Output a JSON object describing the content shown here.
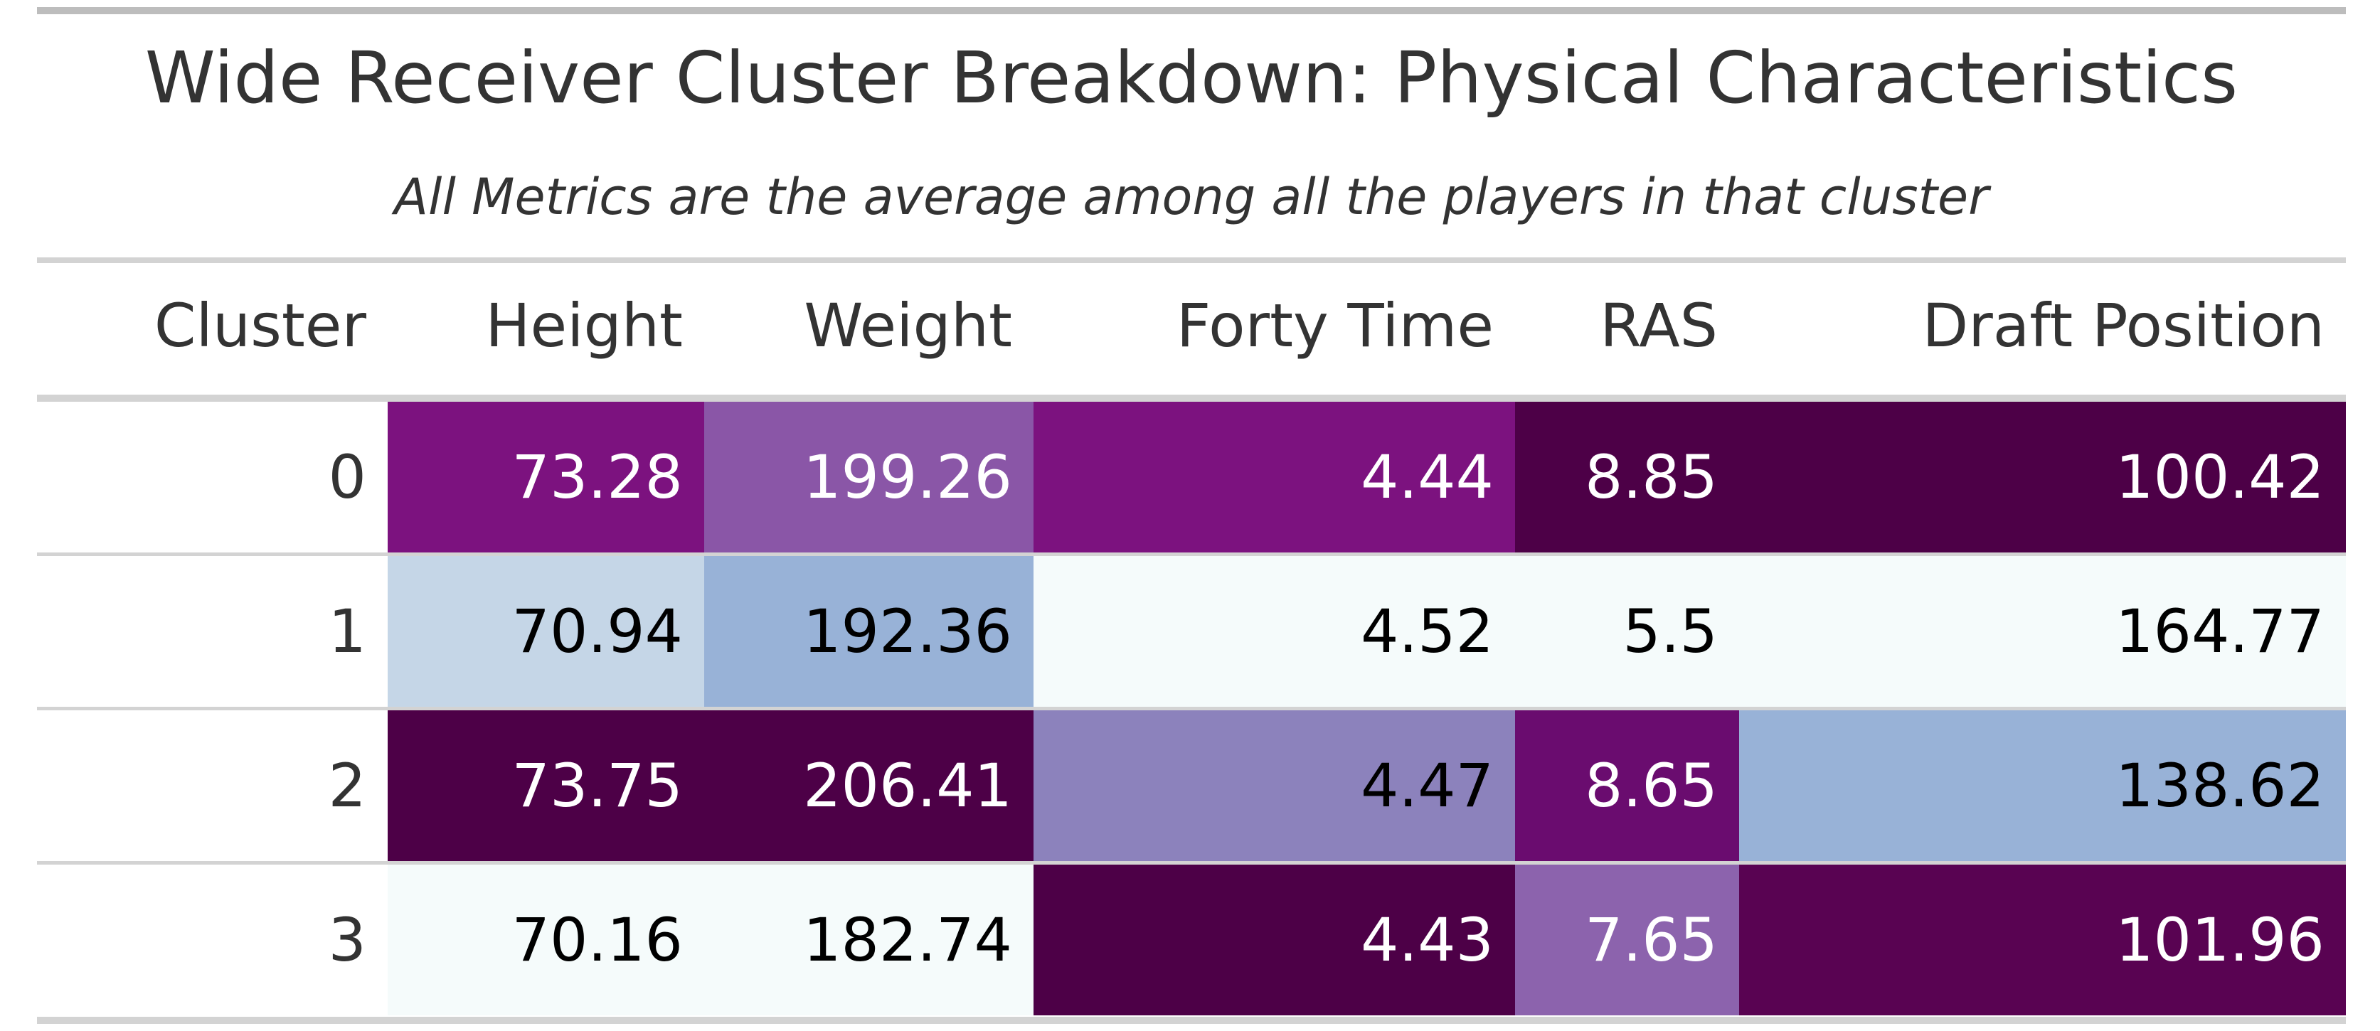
{
  "chart_data": {
    "type": "table",
    "title": "Wide Receiver Cluster Breakdown: Physical Characteristics",
    "subtitle": "All Metrics are the average among all the players in that cluster",
    "columns": [
      "Cluster",
      "Height",
      "Weight",
      "Forty Time",
      "RAS",
      "Draft Position"
    ],
    "rows": [
      {
        "cells": [
          "0",
          "73.28",
          "199.26",
          "4.44",
          "8.85",
          "100.42"
        ],
        "colors": [
          null,
          "#7c127f",
          "#8a56a7",
          "#7c127f",
          "#4d0047",
          "#4d0047"
        ]
      },
      {
        "cells": [
          "1",
          "70.94",
          "192.36",
          "4.52",
          "5.5",
          "164.77"
        ],
        "colors": [
          null,
          "#c5d6e7",
          "#98b2d7",
          "#f5fbfb",
          "#f5fbfb",
          "#f5fbfb"
        ]
      },
      {
        "cells": [
          "2",
          "73.75",
          "206.41",
          "4.47",
          "8.65",
          "138.62"
        ],
        "colors": [
          null,
          "#4d0047",
          "#4d0047",
          "#8c82bc",
          "#6a0c6f",
          "#98b2d7"
        ]
      },
      {
        "cells": [
          "3",
          "70.16",
          "182.74",
          "4.43",
          "7.65",
          "101.96"
        ],
        "colors": [
          null,
          "#f5fbfb",
          "#f5fbfb",
          "#4d0047",
          "#8c63ad",
          "#590352"
        ]
      }
    ]
  }
}
